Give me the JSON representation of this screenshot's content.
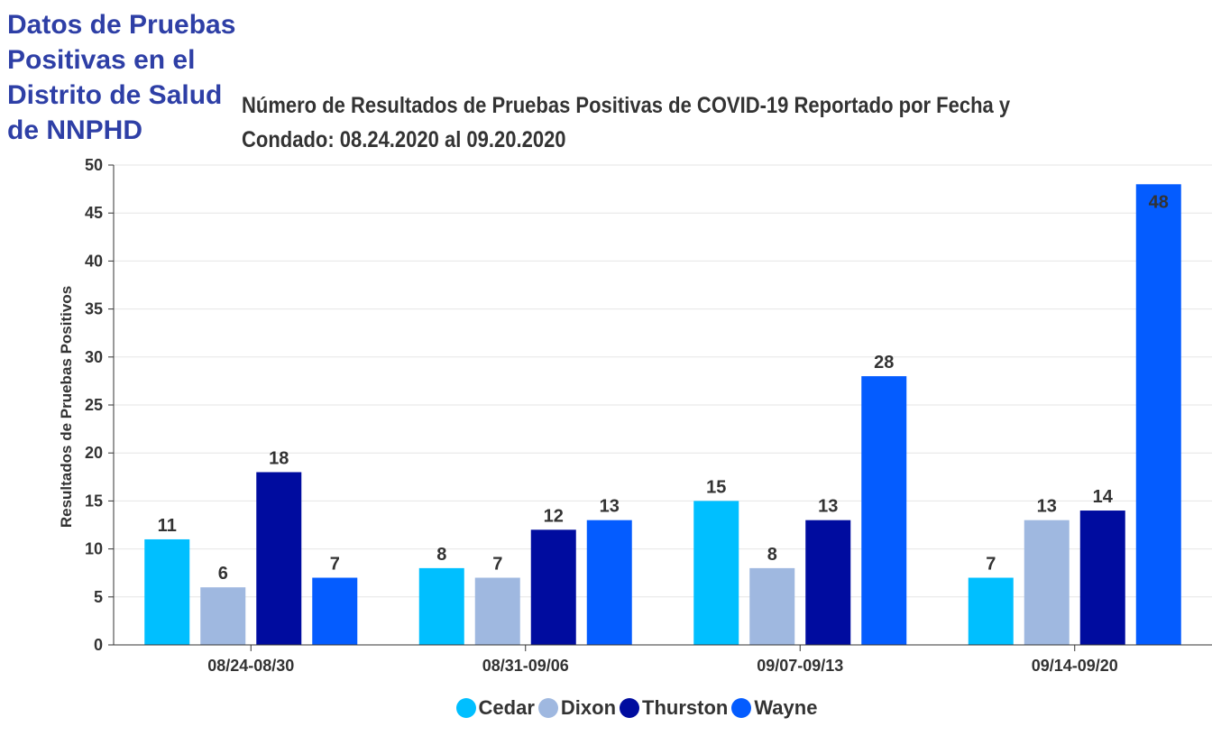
{
  "page_heading": "Datos de Pruebas Positivas en el Distrito de Salud de NNPHD",
  "chart_data": {
    "type": "bar",
    "title": "Número de Resultados de Pruebas Positivas de COVID-19 Reportado por Fecha y\nCondado: 08.24.2020 al 09.20.2020",
    "xlabel": "",
    "ylabel": "Resultados de Pruebas Positivos",
    "ylim": [
      0,
      50
    ],
    "yticks": [
      0,
      5,
      10,
      15,
      20,
      25,
      30,
      35,
      40,
      45,
      50
    ],
    "grid": true,
    "legend_position": "bottom",
    "categories": [
      "08/24-08/30",
      "08/31-09/06",
      "09/07-09/13",
      "09/14-09/20"
    ],
    "series": [
      {
        "name": "Cedar",
        "color": "#00bfff",
        "values": [
          11,
          8,
          15,
          7
        ]
      },
      {
        "name": "Dixon",
        "color": "#9fb8e0",
        "values": [
          6,
          7,
          8,
          13
        ]
      },
      {
        "name": "Thurston",
        "color": "#000c9f",
        "values": [
          18,
          12,
          13,
          14
        ]
      },
      {
        "name": "Wayne",
        "color": "#045cff",
        "values": [
          7,
          13,
          28,
          48
        ]
      }
    ]
  }
}
